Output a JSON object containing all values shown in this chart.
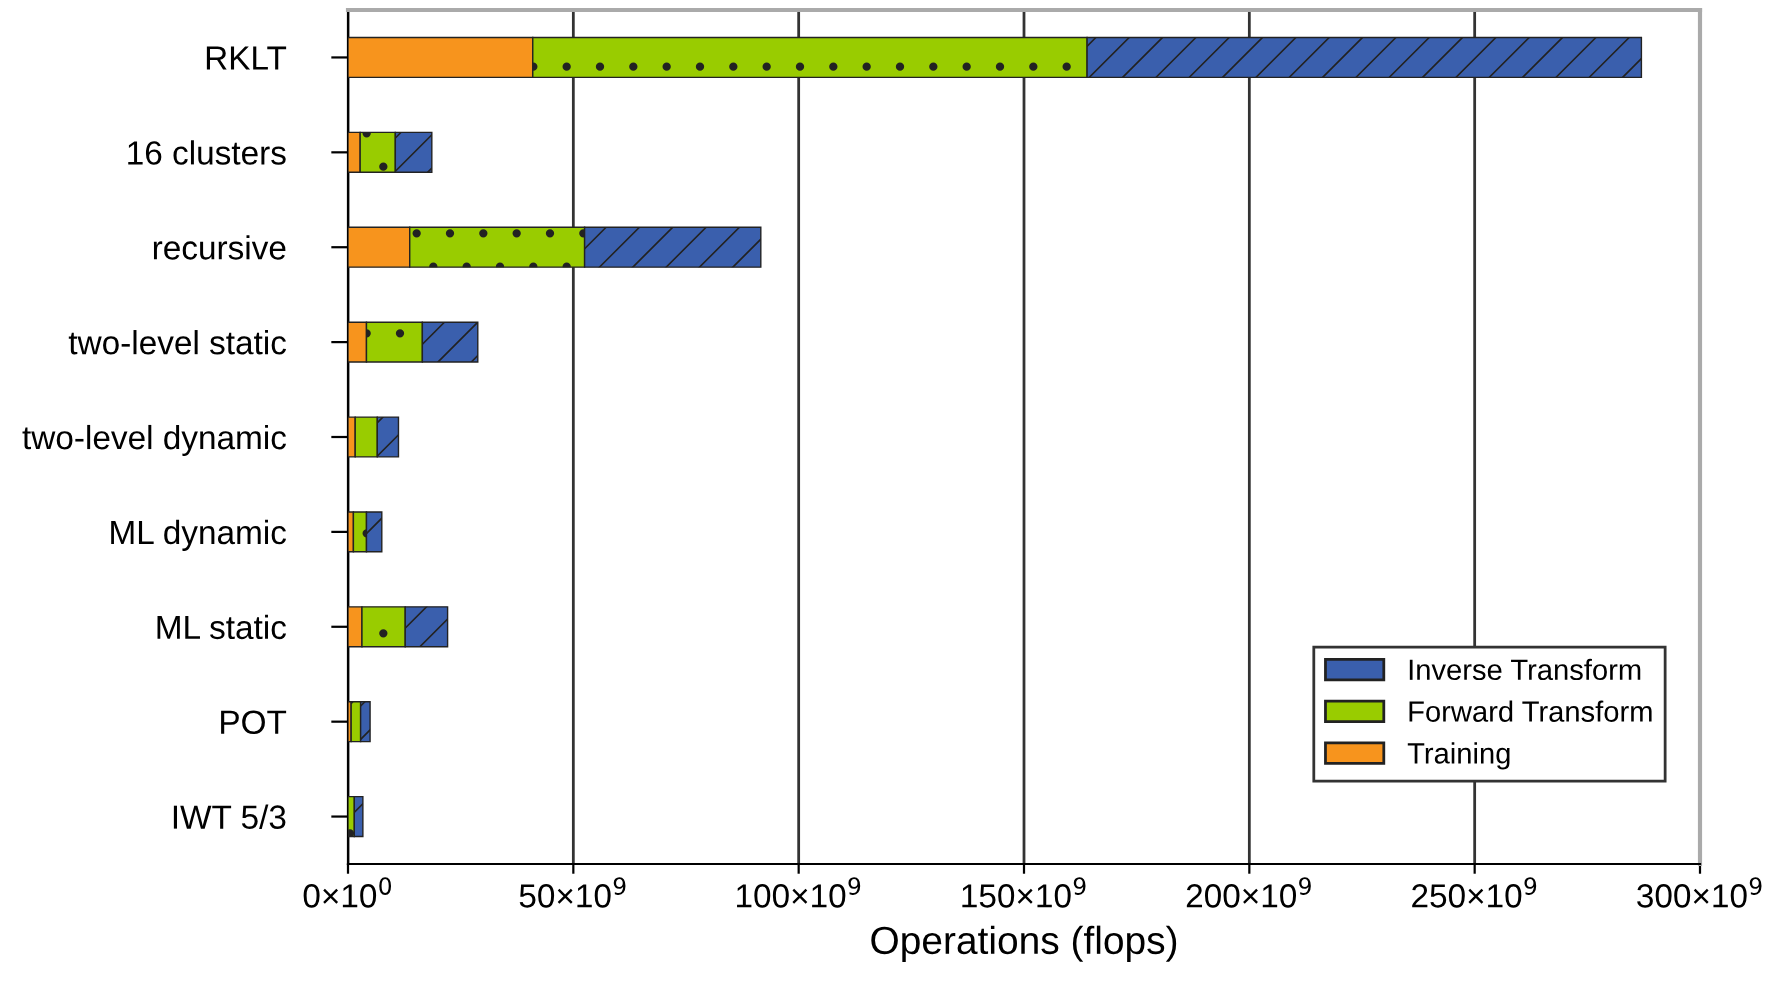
{
  "chart_data": {
    "type": "bar",
    "orientation": "horizontal",
    "stacked": true,
    "categories": [
      "RKLT",
      "16 clusters",
      "recursive",
      "two-level static",
      "two-level dynamic",
      "ML dynamic",
      "ML static",
      "POT",
      "IWT 5/3"
    ],
    "series": [
      {
        "name": "Training",
        "color": "#f7941d",
        "values": [
          41000000000,
          2700000000,
          13700000000,
          4100000000,
          1600000000,
          1200000000,
          3100000000,
          700000000,
          null
        ]
      },
      {
        "name": "Forward Transform",
        "color": "#99cc00",
        "values": [
          123000000000,
          7800000000,
          38800000000,
          12400000000,
          4900000000,
          2900000000,
          9600000000,
          2100000000,
          1400000000
        ]
      },
      {
        "name": "Inverse Transform",
        "color": "#3a5fad",
        "values": [
          123000000000,
          8100000000,
          39100000000,
          12300000000,
          4700000000,
          3400000000,
          9400000000,
          2100000000,
          1900000000
        ]
      }
    ],
    "xlabel": "Operations (flops)",
    "xlim": [
      0,
      300000000000
    ],
    "xticks": [
      {
        "value": 0,
        "label": "0×10$^{0}$"
      },
      {
        "value": 50000000000,
        "label": "50×10$^{9}$"
      },
      {
        "value": 100000000000,
        "label": "100×10$^{9}$"
      },
      {
        "value": 150000000000,
        "label": "150×10$^{9}$"
      },
      {
        "value": 200000000000,
        "label": "200×10$^{9}$"
      },
      {
        "value": 250000000000,
        "label": "250×10$^{9}$"
      },
      {
        "value": 300000000000,
        "label": "300×10$^{9}$"
      }
    ],
    "grid": "x",
    "legend": "bottom right"
  }
}
